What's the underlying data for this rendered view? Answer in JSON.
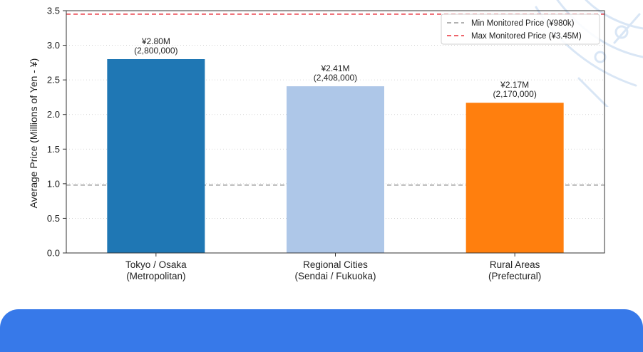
{
  "chart_data": {
    "type": "bar",
    "title": "",
    "xlabel": "",
    "ylabel": "Average Price (Millions of Yen - ¥)",
    "ylim": [
      0,
      3.5
    ],
    "yticks": [
      "0.0",
      "0.5",
      "1.0",
      "1.5",
      "2.0",
      "2.5",
      "3.0",
      "3.5"
    ],
    "categories": [
      [
        "Tokyo / Osaka",
        "(Metropolitan)"
      ],
      [
        "Regional Cities",
        "(Sendai / Fukuoka)"
      ],
      [
        "Rural Areas",
        "(Prefectural)"
      ]
    ],
    "values": [
      2.8,
      2.408,
      2.17
    ],
    "data_labels": [
      [
        "¥2.80M",
        "(2,800,000)"
      ],
      [
        "¥2.41M",
        "(2,408,000)"
      ],
      [
        "¥2.17M",
        "(2,170,000)"
      ]
    ],
    "bar_colors": [
      "#1f77b4",
      "#aec7e8",
      "#ff7f0e"
    ],
    "reference_lines": [
      {
        "name": "Min Monitored Price (¥980k)",
        "value": 0.98,
        "color": "#999999"
      },
      {
        "name": "Max Monitored Price (¥3.45M)",
        "value": 3.45,
        "color": "#e8323c"
      }
    ],
    "grid": "horizontal dotted",
    "legend_position": "top-right"
  }
}
